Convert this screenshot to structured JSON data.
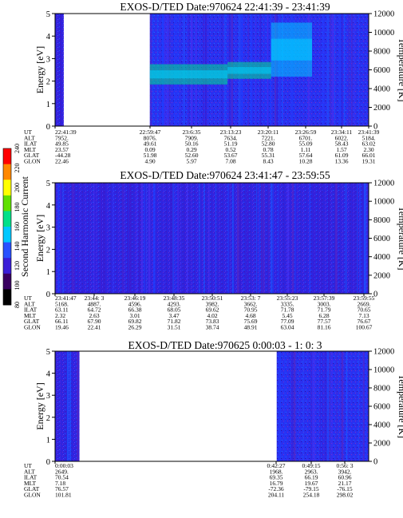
{
  "chart_data": {
    "type": "heatmap",
    "colorbar": {
      "label": "Second Harmonic Current",
      "ticks": [
        80,
        100,
        120,
        140,
        160,
        180,
        200,
        220,
        240
      ],
      "range": [
        80,
        240
      ],
      "colors": [
        "#000000",
        "#3a0060",
        "#3b1fd8",
        "#2a52ff",
        "#00c8ff",
        "#00e08a",
        "#60e000",
        "#ffff00",
        "#ff8800",
        "#ff0000"
      ]
    },
    "panels": [
      {
        "title": "EXOS-D/TED   Date:970624  22:41:39 - 23:41:39",
        "ylabel": "Energy [eV]",
        "y2label": "Temperature [K]",
        "ylim": [
          0,
          5
        ],
        "y2lim": [
          0,
          12000
        ],
        "yticks": [
          "0",
          "1",
          "2",
          "3",
          "4",
          "5"
        ],
        "y2ticks": [
          "0",
          "2000",
          "4000",
          "6000",
          "8000",
          "10000",
          "12000"
        ],
        "xlim_sec": [
          0,
          3600
        ],
        "data_segments": [
          [
            0,
            100
          ],
          [
            1088,
            3600
          ]
        ],
        "bands": [
          {
            "t0": 1088,
            "t1": 1980,
            "e0": 1.85,
            "e1": 2.75,
            "level": 175
          },
          {
            "t0": 1980,
            "t1": 2480,
            "e0": 2.1,
            "e1": 2.85,
            "level": 160
          },
          {
            "t0": 2480,
            "t1": 2950,
            "e0": 2.2,
            "e1": 4.6,
            "level": 150
          }
        ],
        "row_labels": [
          "UT",
          "ALT",
          "ILAT",
          "MLT",
          "GLAT",
          "GLON"
        ],
        "columns": [
          {
            "UT": "22:41:39",
            "ALT": "7952.",
            "ILAT": "49.85",
            "MLT": "23.57",
            "GLAT": "-44.28",
            "GLON": "22.46"
          },
          {
            "UT": "22:59:47",
            "ALT": "8076.",
            "ILAT": "49.61",
            "MLT": "0.09",
            "GLAT": "51.98",
            "GLON": "4.90"
          },
          {
            "UT": "23:6:35",
            "ALT": "7909.",
            "ILAT": "50.16",
            "MLT": "0.29",
            "GLAT": "52.60",
            "GLON": "5.97"
          },
          {
            "UT": "23:13:23",
            "ALT": "7634.",
            "ILAT": "51.19",
            "MLT": "0.52",
            "GLAT": "53.67",
            "GLON": "7.08"
          },
          {
            "UT": "23:20:11",
            "ALT": "7221.",
            "ILAT": "52.80",
            "MLT": "0.78",
            "GLAT": "55.31",
            "GLON": "8.43"
          },
          {
            "UT": "23:26:59",
            "ALT": "6701.",
            "ILAT": "55.09",
            "MLT": "1.11",
            "GLAT": "57.64",
            "GLON": "10.28"
          },
          {
            "UT": "23:34:11",
            "ALT": "6022.",
            "ILAT": "58.43",
            "MLT": "1.57",
            "GLAT": "61.09",
            "GLON": "13.36"
          },
          {
            "UT": "23:41:39",
            "ALT": "5184.",
            "ILAT": "63.02",
            "MLT": "2.30",
            "GLAT": "66.01",
            "GLON": "19.31"
          }
        ]
      },
      {
        "title": "EXOS-D/TED   Date:970624  23:41:47 - 23:59:55",
        "ylabel": "Energy [eV]",
        "y2label": "Temperature [K]",
        "ylim": [
          0,
          5
        ],
        "y2lim": [
          0,
          12000
        ],
        "yticks": [
          "0",
          "1",
          "2",
          "3",
          "4",
          "5"
        ],
        "y2ticks": [
          "0",
          "2000",
          "4000",
          "6000",
          "8000",
          "10000",
          "12000"
        ],
        "xlim_sec": [
          0,
          1088
        ],
        "data_segments": [
          [
            0,
            1088
          ]
        ],
        "bands": [],
        "row_labels": [
          "UT",
          "ALT",
          "ILAT",
          "MLT",
          "GLAT",
          "GLON"
        ],
        "columns": [
          {
            "UT": "23:41:47",
            "ALT": "5168.",
            "ILAT": "63.11",
            "MLT": "2.32",
            "GLAT": "66.11",
            "GLON": "19.46"
          },
          {
            "UT": "23:44: 3",
            "ALT": "4887.",
            "ILAT": "64.72",
            "MLT": "2.63",
            "GLAT": "67.90",
            "GLON": "22.41"
          },
          {
            "UT": "23:46:19",
            "ALT": "4596.",
            "ILAT": "66.38",
            "MLT": "3.01",
            "GLAT": "69.82",
            "GLON": "26.29"
          },
          {
            "UT": "23:48:35",
            "ALT": "4293.",
            "ILAT": "68.05",
            "MLT": "3.47",
            "GLAT": "71.82",
            "GLON": "31.51"
          },
          {
            "UT": "23:50:51",
            "ALT": "3982.",
            "ILAT": "69.62",
            "MLT": "4.02",
            "GLAT": "73.83",
            "GLON": "38.74"
          },
          {
            "UT": "23:53: 7",
            "ALT": "3662.",
            "ILAT": "70.95",
            "MLT": "4.68",
            "GLAT": "75.69",
            "GLON": "48.91"
          },
          {
            "UT": "23:55:23",
            "ALT": "3335.",
            "ILAT": "71.78",
            "MLT": "5.45",
            "GLAT": "77.09",
            "GLON": "63.04"
          },
          {
            "UT": "23:57:39",
            "ALT": "3003.",
            "ILAT": "71.79",
            "MLT": "6.28",
            "GLAT": "77.57",
            "GLON": "81.16"
          },
          {
            "UT": "23:59:55",
            "ALT": "2669.",
            "ILAT": "70.65",
            "MLT": "7.13",
            "GLAT": "76.67",
            "GLON": "100.67"
          }
        ]
      },
      {
        "title": "EXOS-D/TED   Date:970625  0:00:03 - 1: 0: 3",
        "ylabel": "Energy [eV]",
        "y2label": "Temperature [K]",
        "ylim": [
          0,
          5
        ],
        "y2lim": [
          0,
          12000
        ],
        "yticks": [
          "0",
          "1",
          "2",
          "3",
          "4",
          "5"
        ],
        "y2ticks": [
          "0",
          "2000",
          "4000",
          "6000",
          "8000",
          "10000",
          "12000"
        ],
        "xlim_sec": [
          0,
          3600
        ],
        "data_segments": [
          [
            0,
            280
          ],
          [
            2544,
            3600
          ]
        ],
        "bands": [],
        "row_labels": [
          "UT",
          "ALT",
          "ILAT",
          "MLT",
          "GLAT",
          "GLON"
        ],
        "columns": [
          {
            "UT": "0:00:03",
            "ALT": "2649.",
            "ILAT": "70.54",
            "MLT": "7.18",
            "GLAT": "76.57",
            "GLON": "101.81"
          },
          {
            "UT": "0:42:27",
            "ALT": "1968.",
            "ILAT": "69.35",
            "MLT": "16.79",
            "GLAT": "-72.36",
            "GLON": "204.11"
          },
          {
            "UT": "0:49:15",
            "ALT": "2963.",
            "ILAT": "66.19",
            "MLT": "19.67",
            "GLAT": "-79.15",
            "GLON": "254.18"
          },
          {
            "UT": "0:56: 3",
            "ALT": "3942.",
            "ILAT": "60.96",
            "MLT": "21.17",
            "GLAT": "-76.15",
            "GLON": "298.02"
          }
        ]
      }
    ]
  }
}
